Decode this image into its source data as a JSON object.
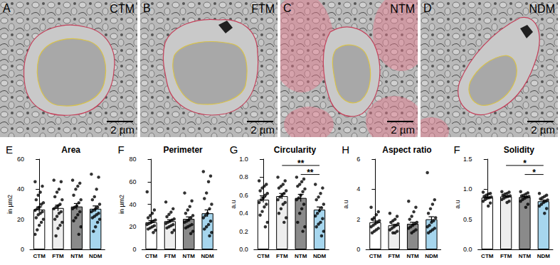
{
  "images": [
    {
      "panel_label": "A",
      "label": "CTM",
      "scale_bar": "2 µm"
    },
    {
      "panel_label": "B",
      "label": "FTM",
      "scale_bar": "2 µm"
    },
    {
      "panel_label": "C",
      "label": "NTM",
      "scale_bar": "2 µm"
    },
    {
      "panel_label": "D",
      "label": "NDM",
      "scale_bar": "2 µm"
    }
  ],
  "chart_data": [
    {
      "type": "bar",
      "panel_label": "E",
      "title": "Area",
      "y_label": "in µm2",
      "categories": [
        "CTM",
        "FTM",
        "NTM",
        "NDM"
      ],
      "values": [
        26.5,
        27.5,
        28.5,
        27
      ],
      "error": [
        1.8,
        1.9,
        2.0,
        1.9
      ],
      "points": [
        [
          45,
          42,
          38,
          36,
          33,
          31,
          30,
          28,
          27,
          26,
          25,
          24,
          23,
          21,
          20,
          18,
          16,
          13,
          10
        ],
        [
          46,
          45,
          40,
          38,
          35,
          33,
          30,
          29,
          28,
          27,
          25,
          24,
          22,
          20,
          18,
          16,
          14,
          9
        ],
        [
          46,
          44,
          42,
          40,
          36,
          33,
          31,
          29,
          28,
          27,
          25,
          23,
          21,
          19,
          15,
          10
        ],
        [
          50,
          48,
          40,
          35,
          33,
          30,
          28,
          27,
          26,
          25,
          24,
          23,
          22,
          21,
          20,
          18,
          15,
          12
        ]
      ],
      "colors": [
        "#ffffff",
        "#eeeeee",
        "#8a8a8a",
        "#a6d6ee"
      ],
      "marker": "circle",
      "ylim": [
        0,
        60
      ],
      "yticks": [
        0,
        20,
        40,
        60
      ],
      "grid": false,
      "significance": []
    },
    {
      "type": "bar",
      "panel_label": "F",
      "title": "Perimeter",
      "y_label": "in µm2",
      "categories": [
        "CTM",
        "FTM",
        "NTM",
        "NDM"
      ],
      "values": [
        24,
        25,
        27,
        32
      ],
      "error": [
        1.5,
        1.3,
        1.8,
        3.0
      ],
      "points": [
        [
          51,
          35,
          32,
          30,
          28,
          26,
          25,
          24,
          23,
          22,
          21,
          20,
          19,
          18,
          17,
          15
        ],
        [
          42,
          36,
          33,
          31,
          29,
          27,
          26,
          25,
          24,
          23,
          22,
          21,
          20,
          19,
          17,
          15
        ],
        [
          50,
          43,
          38,
          35,
          32,
          30,
          28,
          26,
          25,
          24,
          22,
          21,
          20,
          19,
          16,
          14
        ],
        [
          69,
          65,
          60,
          50,
          45,
          40,
          36,
          32,
          30,
          28,
          25,
          22,
          20,
          18,
          15,
          12
        ]
      ],
      "colors": [
        "#ffffff",
        "#eeeeee",
        "#8a8a8a",
        "#a6d6ee"
      ],
      "marker": "circle",
      "ylim": [
        0,
        80
      ],
      "yticks": [
        0,
        20,
        40,
        60,
        80
      ],
      "grid": false,
      "significance": []
    },
    {
      "type": "bar",
      "panel_label": "G",
      "title": "Circularity",
      "y_label": "a.u",
      "categories": [
        "CTM",
        "FTM",
        "NTM",
        "NDM"
      ],
      "values": [
        0.55,
        0.59,
        0.57,
        0.44
      ],
      "error": [
        0.03,
        0.03,
        0.04,
        0.03
      ],
      "points": [
        [
          0.76,
          0.72,
          0.7,
          0.68,
          0.65,
          0.62,
          0.6,
          0.57,
          0.55,
          0.52,
          0.5,
          0.47,
          0.42,
          0.38,
          0.3,
          0.25
        ],
        [
          0.8,
          0.76,
          0.72,
          0.7,
          0.68,
          0.65,
          0.62,
          0.6,
          0.58,
          0.55,
          0.52,
          0.5,
          0.45,
          0.4,
          0.35,
          0.3
        ],
        [
          0.8,
          0.78,
          0.75,
          0.72,
          0.7,
          0.67,
          0.64,
          0.6,
          0.57,
          0.55,
          0.5,
          0.45,
          0.4,
          0.3,
          0.25,
          0.2
        ],
        [
          0.72,
          0.68,
          0.62,
          0.58,
          0.55,
          0.5,
          0.46,
          0.43,
          0.4,
          0.37,
          0.34,
          0.3,
          0.28,
          0.25,
          0.2,
          0.15
        ]
      ],
      "colors": [
        "#ffffff",
        "#eeeeee",
        "#8a8a8a",
        "#a6d6ee"
      ],
      "marker": "circle",
      "ylim": [
        0,
        1
      ],
      "yticks": [
        {
          "value": 0,
          "label": "0.0"
        },
        0.2,
        0.4,
        0.6,
        0.8,
        {
          "value": 1,
          "label": "1.0"
        }
      ],
      "grid": false,
      "significance": [
        {
          "from": "FTM",
          "to": "NDM",
          "label": "**"
        },
        {
          "from": "NTM",
          "to": "NDM",
          "label": "**"
        }
      ]
    },
    {
      "type": "bar",
      "panel_label": "H",
      "title": "Aspect ratio",
      "y_label": "a.u",
      "categories": [
        "CTM",
        "FTM",
        "NTM",
        "NDM"
      ],
      "values": [
        1.8,
        1.6,
        1.7,
        2.0
      ],
      "error": [
        0.09,
        0.07,
        0.1,
        0.17
      ],
      "points": [
        [
          2.8,
          2.5,
          2.3,
          2.1,
          2.0,
          1.9,
          1.8,
          1.7,
          1.6,
          1.5,
          1.4,
          1.3,
          1.2,
          1.1
        ],
        [
          2.4,
          2.2,
          2.0,
          1.9,
          1.8,
          1.7,
          1.6,
          1.5,
          1.4,
          1.3,
          1.2,
          1.1,
          1.1
        ],
        [
          3.2,
          2.8,
          2.5,
          2.2,
          2.0,
          1.8,
          1.7,
          1.6,
          1.5,
          1.4,
          1.3,
          1.2,
          1.1
        ],
        [
          5.1,
          3.3,
          3.0,
          2.7,
          2.4,
          2.1,
          1.9,
          1.8,
          1.6,
          1.5,
          1.4,
          1.3,
          1.2,
          1.1
        ]
      ],
      "colors": [
        "#ffffff",
        "#eeeeee",
        "#8a8a8a",
        "#a6d6ee"
      ],
      "marker": "circle",
      "ylim": [
        0,
        6
      ],
      "yticks": [
        0,
        2,
        4,
        6
      ],
      "grid": false,
      "significance": []
    },
    {
      "type": "bar",
      "panel_label": "F",
      "title": "Solidity",
      "y_label": "a.u",
      "categories": [
        "CTM",
        "FTM",
        "NTM",
        "NDM"
      ],
      "values": [
        0.86,
        0.88,
        0.87,
        0.8
      ],
      "error": [
        0.01,
        0.01,
        0.01,
        0.02
      ],
      "points": [
        [
          0.95,
          0.93,
          0.92,
          0.9,
          0.88,
          0.87,
          0.86,
          0.85,
          0.83,
          0.8,
          0.77,
          0.72
        ],
        [
          0.96,
          0.95,
          0.93,
          0.92,
          0.9,
          0.89,
          0.88,
          0.87,
          0.85,
          0.83,
          0.8,
          0.78
        ],
        [
          0.96,
          0.94,
          0.92,
          0.9,
          0.89,
          0.88,
          0.87,
          0.85,
          0.83,
          0.8,
          0.75,
          0.7
        ],
        [
          0.93,
          0.9,
          0.88,
          0.86,
          0.84,
          0.82,
          0.8,
          0.78,
          0.75,
          0.72,
          0.68,
          0.6
        ]
      ],
      "colors": [
        "#ffffff",
        "#eeeeee",
        "#8a8a8a",
        "#a6d6ee"
      ],
      "marker": "circle",
      "ylim": [
        0,
        1.5
      ],
      "yticks": [
        {
          "value": 0,
          "label": "0.0"
        },
        0.5,
        {
          "value": 1,
          "label": "1.0"
        },
        1.5
      ],
      "grid": false,
      "significance": [
        {
          "from": "FTM",
          "to": "NDM",
          "label": "*"
        },
        {
          "from": "NTM",
          "to": "NDM",
          "label": "*"
        }
      ]
    }
  ]
}
